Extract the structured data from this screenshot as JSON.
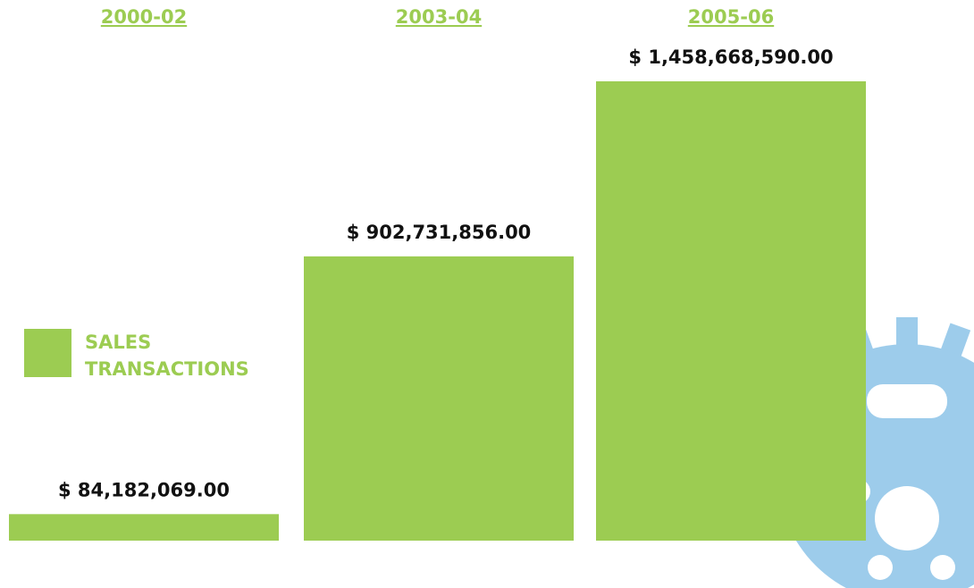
{
  "chart_data": {
    "type": "bar",
    "categories": [
      "2000-02",
      "2003-04",
      "2005-06"
    ],
    "series": [
      {
        "name": "SALES TRANSACTIONS",
        "color": "#9ccc52",
        "values": [
          84182069,
          902731856,
          1458668590
        ],
        "value_labels": [
          "$ 84,182,069.00",
          "$ 902,731,856.00",
          "$ 1,458,668,590.00"
        ]
      }
    ]
  }
}
